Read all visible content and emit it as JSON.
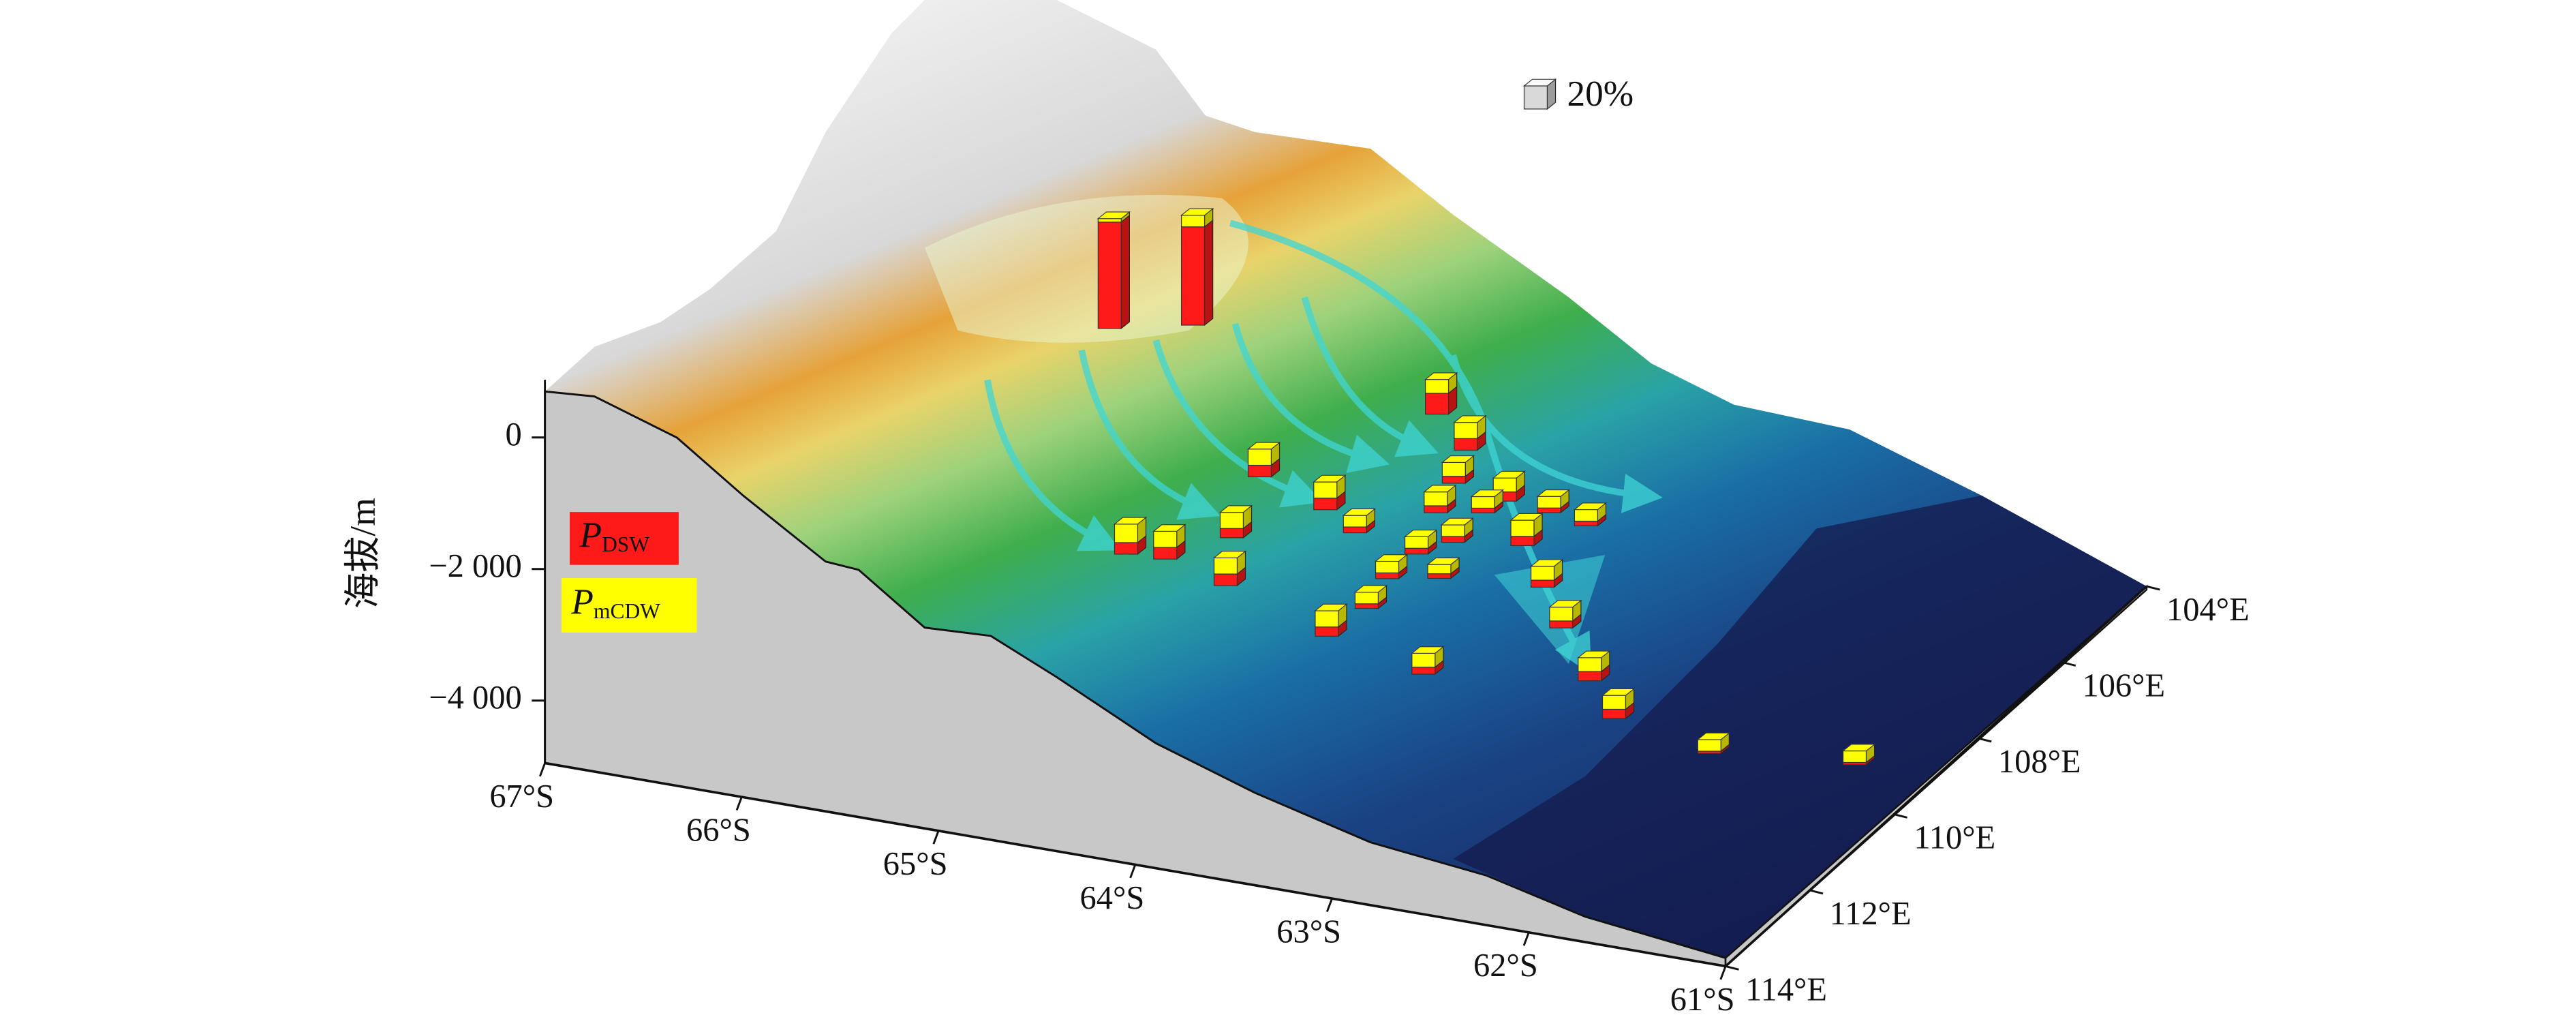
{
  "figure": {
    "elevation_axis": {
      "title": "海拔/m",
      "lim": [
        -4950,
        875
      ],
      "ticks": [
        0,
        {
          "value": -2000,
          "label": "−2 000"
        },
        {
          "value": -4000,
          "label": "−4 000"
        }
      ]
    },
    "lat_axis": {
      "lim": [
        -67,
        -61
      ],
      "ticks": [
        {
          "value": -67,
          "label": "67°S"
        },
        {
          "value": -66,
          "label": "66°S"
        },
        {
          "value": -65,
          "label": "65°S"
        },
        {
          "value": -64,
          "label": "64°S"
        },
        {
          "value": -63,
          "label": "63°S"
        },
        {
          "value": -62,
          "label": "62°S"
        },
        {
          "value": -61,
          "label": "61°S"
        }
      ]
    },
    "lon_axis": {
      "lim": [
        114,
        104
      ],
      "ticks": [
        {
          "value": 104,
          "label": "104°E"
        },
        {
          "value": 106,
          "label": "106°E"
        },
        {
          "value": 108,
          "label": "108°E"
        },
        {
          "value": 110,
          "label": "110°E"
        },
        {
          "value": 112,
          "label": "112°E"
        },
        {
          "value": 114,
          "label": "114°E"
        }
      ]
    },
    "legend": [
      {
        "symbol": "P",
        "subscript": "DSW",
        "color": "#ff1a1a"
      },
      {
        "symbol": "P",
        "subscript": "mCDW",
        "color": "#ffff00"
      }
    ],
    "scale": {
      "value": 20,
      "label": "20%"
    },
    "stations": [
      {
        "lat": -65.23,
        "lon": 108.86,
        "depth": -400,
        "p_dsw": 92,
        "p_mcdw": 3
      },
      {
        "lat": -64.89,
        "lon": 108.47,
        "depth": -400,
        "p_dsw": 85,
        "p_mcdw": 10
      },
      {
        "lat": -63.77,
        "lon": 107.91,
        "depth": -1500,
        "p_dsw": 18,
        "p_mcdw": 12
      },
      {
        "lat": -63.57,
        "lon": 108.16,
        "depth": -1800,
        "p_dsw": 10,
        "p_mcdw": 14
      },
      {
        "lat": -64.23,
        "lon": 109.97,
        "depth": -1500,
        "p_dsw": 10,
        "p_mcdw": 14
      },
      {
        "lat": -63.95,
        "lon": 109.72,
        "depth": -2000,
        "p_dsw": 10,
        "p_mcdw": 14
      },
      {
        "lat": -63.62,
        "lon": 108.21,
        "depth": -2300,
        "p_dsw": 6,
        "p_mcdw": 12
      },
      {
        "lat": -64.31,
        "lon": 110.26,
        "depth": -2300,
        "p_dsw": 8,
        "p_mcdw": 14
      },
      {
        "lat": -63.38,
        "lon": 108.12,
        "depth": -2500,
        "p_dsw": 8,
        "p_mcdw": 12
      },
      {
        "lat": -63.48,
        "lon": 108.17,
        "depth": -2700,
        "p_dsw": 4,
        "p_mcdw": 10
      },
      {
        "lat": -63.62,
        "lon": 108.64,
        "depth": -2500,
        "p_dsw": 6,
        "p_mcdw": 12
      },
      {
        "lat": -63.23,
        "lon": 107.77,
        "depth": -2800,
        "p_dsw": 4,
        "p_mcdw": 10
      },
      {
        "lat": -63.01,
        "lon": 107.92,
        "depth": -2800,
        "p_dsw": 4,
        "p_mcdw": 10
      },
      {
        "lat": -63.87,
        "lon": 109.39,
        "depth": -2500,
        "p_dsw": 5,
        "p_mcdw": 10
      },
      {
        "lat": -64.59,
        "lon": 111.46,
        "depth": -2000,
        "p_dsw": 10,
        "p_mcdw": 16
      },
      {
        "lat": -64.4,
        "lon": 111.42,
        "depth": -2000,
        "p_dsw": 10,
        "p_mcdw": 14
      },
      {
        "lat": -63.5,
        "lon": 108.79,
        "depth": -2800,
        "p_dsw": 5,
        "p_mcdw": 10
      },
      {
        "lat": -63.25,
        "lon": 108.31,
        "depth": -3000,
        "p_dsw": 8,
        "p_mcdw": 14
      },
      {
        "lat": -63.6,
        "lon": 109.19,
        "depth": -2800,
        "p_dsw": 5,
        "p_mcdw": 10
      },
      {
        "lat": -63.64,
        "lon": 109.7,
        "depth": -2900,
        "p_dsw": 5,
        "p_mcdw": 10
      },
      {
        "lat": -63.45,
        "lon": 109.35,
        "depth": -3000,
        "p_dsw": 4,
        "p_mcdw": 8
      },
      {
        "lat": -64.11,
        "lon": 111.34,
        "depth": -2300,
        "p_dsw": 10,
        "p_mcdw": 14
      },
      {
        "lat": -63.03,
        "lon": 108.86,
        "depth": -3200,
        "p_dsw": 6,
        "p_mcdw": 12
      },
      {
        "lat": -63.68,
        "lon": 110.0,
        "depth": -3200,
        "p_dsw": 4,
        "p_mcdw": 10
      },
      {
        "lat": -62.82,
        "lon": 109.4,
        "depth": -3400,
        "p_dsw": 6,
        "p_mcdw": 12
      },
      {
        "lat": -63.75,
        "lon": 110.62,
        "depth": -3300,
        "p_dsw": 8,
        "p_mcdw": 14
      },
      {
        "lat": -63.22,
        "lon": 110.8,
        "depth": -3500,
        "p_dsw": 6,
        "p_mcdw": 12
      },
      {
        "lat": -62.51,
        "lon": 110.17,
        "depth": -3600,
        "p_dsw": 8,
        "p_mcdw": 12
      },
      {
        "lat": -62.29,
        "lon": 110.62,
        "depth": -3800,
        "p_dsw": 8,
        "p_mcdw": 12
      },
      {
        "lat": -61.78,
        "lon": 110.74,
        "depth": -4000,
        "p_dsw": 2,
        "p_mcdw": 10
      },
      {
        "lat": -61.2,
        "lon": 110.0,
        "depth": -4300,
        "p_dsw": 2,
        "p_mcdw": 10
      }
    ]
  }
}
